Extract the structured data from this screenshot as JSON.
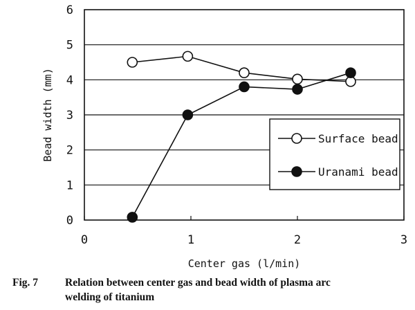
{
  "chart_data": {
    "type": "line",
    "xlabel": "Center gas (l/min)",
    "ylabel": "Bead width (mm)",
    "xlim": [
      0,
      3
    ],
    "ylim": [
      0,
      6
    ],
    "xticks": [
      "0",
      "1",
      "2",
      "3"
    ],
    "yticks": [
      "0",
      "1",
      "2",
      "3",
      "4",
      "5",
      "6"
    ],
    "grid": "horizontal",
    "legend_position": "bottom-right",
    "series": [
      {
        "name": "Surface bead",
        "marker": "open-circle",
        "x": [
          0.45,
          0.97,
          1.5,
          2.0,
          2.5
        ],
        "y": [
          4.5,
          4.67,
          4.2,
          4.02,
          3.95
        ]
      },
      {
        "name": "Uranami bead",
        "marker": "filled-circle",
        "x": [
          0.45,
          0.97,
          1.5,
          2.0,
          2.5
        ],
        "y": [
          0.08,
          3.0,
          3.8,
          3.73,
          4.2
        ]
      }
    ]
  },
  "caption": {
    "number": "Fig. 7",
    "line1": "Relation between center gas and bead width of plasma arc",
    "line2": "welding of titanium"
  }
}
